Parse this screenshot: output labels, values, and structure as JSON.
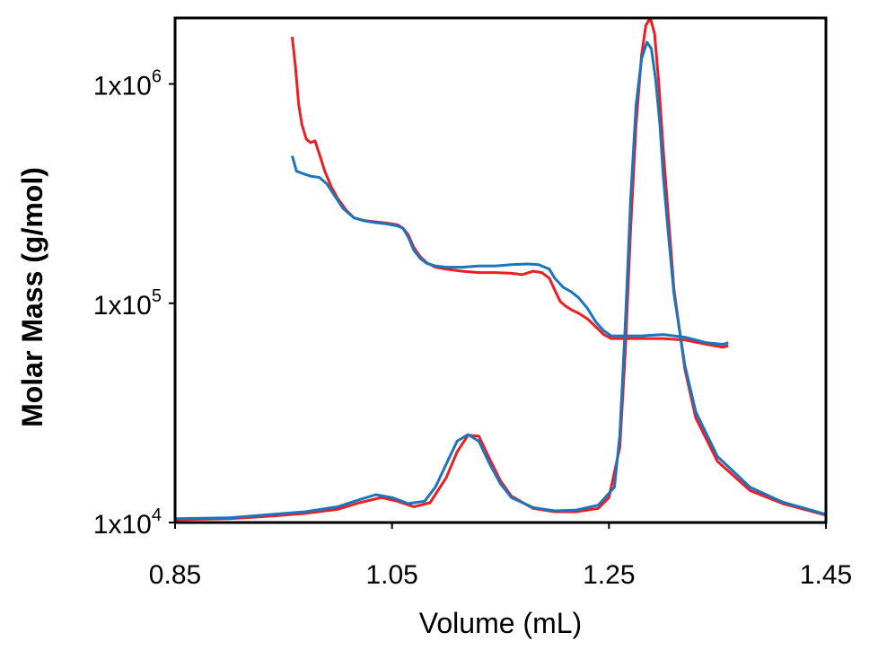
{
  "chart_data": {
    "type": "line",
    "title": "",
    "xlabel": "Volume (mL)",
    "ylabel": "Molar Mass (g/mol)",
    "xlim": [
      0.85,
      1.45
    ],
    "ylim": [
      10000,
      2000000
    ],
    "yscale": "log",
    "grid": false,
    "legend": "none",
    "x_ticks": [
      "0.85",
      "1.05",
      "1.25",
      "1.45"
    ],
    "x_tick_values": [
      0.85,
      1.05,
      1.25,
      1.45
    ],
    "y_ticks": [
      {
        "base": "1x10",
        "exp": "4",
        "value": 10000
      },
      {
        "base": "1x10",
        "exp": "5",
        "value": 100000
      },
      {
        "base": "1x10",
        "exp": "6",
        "value": 1000000
      }
    ],
    "series": [
      {
        "color": "#ee1c24",
        "kind": "molar-mass",
        "points": [
          [
            0.958,
            1640000
          ],
          [
            0.961,
            1200000
          ],
          [
            0.964,
            800000
          ],
          [
            0.967,
            650000
          ],
          [
            0.971,
            560000
          ],
          [
            0.975,
            540000
          ],
          [
            0.979,
            550000
          ],
          [
            0.983,
            480000
          ],
          [
            0.988,
            400000
          ],
          [
            0.994,
            340000
          ],
          [
            1.0,
            300000
          ],
          [
            1.008,
            265000
          ],
          [
            1.015,
            245000
          ],
          [
            1.025,
            238000
          ],
          [
            1.035,
            235000
          ],
          [
            1.045,
            232000
          ],
          [
            1.055,
            228000
          ],
          [
            1.06,
            220000
          ],
          [
            1.065,
            205000
          ],
          [
            1.07,
            180000
          ],
          [
            1.076,
            163000
          ],
          [
            1.082,
            153000
          ],
          [
            1.09,
            146000
          ],
          [
            1.1,
            143000
          ],
          [
            1.115,
            140000
          ],
          [
            1.13,
            138000
          ],
          [
            1.145,
            138000
          ],
          [
            1.16,
            137000
          ],
          [
            1.17,
            135000
          ],
          [
            1.18,
            140000
          ],
          [
            1.188,
            138000
          ],
          [
            1.195,
            130000
          ],
          [
            1.2,
            115000
          ],
          [
            1.205,
            102000
          ],
          [
            1.21,
            97000
          ],
          [
            1.216,
            93000
          ],
          [
            1.222,
            90000
          ],
          [
            1.23,
            85000
          ],
          [
            1.238,
            78000
          ],
          [
            1.245,
            72000
          ],
          [
            1.252,
            69000
          ],
          [
            1.265,
            69000
          ],
          [
            1.28,
            69000
          ],
          [
            1.3,
            69000
          ],
          [
            1.32,
            68000
          ],
          [
            1.34,
            65000
          ],
          [
            1.355,
            63000
          ],
          [
            1.36,
            64000
          ]
        ]
      },
      {
        "color": "#1b75bc",
        "kind": "molar-mass",
        "points": [
          [
            0.958,
            470000
          ],
          [
            0.962,
            400000
          ],
          [
            0.968,
            390000
          ],
          [
            0.975,
            380000
          ],
          [
            0.983,
            375000
          ],
          [
            0.99,
            350000
          ],
          [
            0.997,
            310000
          ],
          [
            1.005,
            270000
          ],
          [
            1.015,
            245000
          ],
          [
            1.025,
            237000
          ],
          [
            1.035,
            233000
          ],
          [
            1.045,
            230000
          ],
          [
            1.055,
            225000
          ],
          [
            1.06,
            220000
          ],
          [
            1.065,
            200000
          ],
          [
            1.07,
            175000
          ],
          [
            1.076,
            160000
          ],
          [
            1.082,
            152000
          ],
          [
            1.09,
            148000
          ],
          [
            1.1,
            146000
          ],
          [
            1.115,
            146000
          ],
          [
            1.13,
            148000
          ],
          [
            1.145,
            148000
          ],
          [
            1.16,
            150000
          ],
          [
            1.175,
            151000
          ],
          [
            1.185,
            150000
          ],
          [
            1.195,
            143000
          ],
          [
            1.2,
            130000
          ],
          [
            1.208,
            118000
          ],
          [
            1.215,
            113000
          ],
          [
            1.222,
            106000
          ],
          [
            1.23,
            95000
          ],
          [
            1.238,
            82000
          ],
          [
            1.245,
            75000
          ],
          [
            1.252,
            71000
          ],
          [
            1.265,
            71000
          ],
          [
            1.28,
            71000
          ],
          [
            1.3,
            72000
          ],
          [
            1.32,
            70000
          ],
          [
            1.34,
            66000
          ],
          [
            1.355,
            65000
          ],
          [
            1.36,
            66000
          ]
        ]
      },
      {
        "color": "#ee1c24",
        "kind": "chromatogram",
        "points": [
          [
            0.85,
            10300
          ],
          [
            0.9,
            10400
          ],
          [
            0.94,
            10700
          ],
          [
            0.97,
            11000
          ],
          [
            1.0,
            11500
          ],
          [
            1.02,
            12300
          ],
          [
            1.04,
            13000
          ],
          [
            1.055,
            12500
          ],
          [
            1.07,
            11800
          ],
          [
            1.085,
            12300
          ],
          [
            1.1,
            16000
          ],
          [
            1.11,
            21000
          ],
          [
            1.12,
            25000
          ],
          [
            1.13,
            24800
          ],
          [
            1.14,
            19500
          ],
          [
            1.15,
            15500
          ],
          [
            1.16,
            13200
          ],
          [
            1.18,
            11600
          ],
          [
            1.2,
            11200
          ],
          [
            1.22,
            11200
          ],
          [
            1.24,
            11600
          ],
          [
            1.25,
            13000
          ],
          [
            1.26,
            22000
          ],
          [
            1.265,
            60000
          ],
          [
            1.27,
            220000
          ],
          [
            1.275,
            650000
          ],
          [
            1.28,
            1350000
          ],
          [
            1.284,
            1850000
          ],
          [
            1.288,
            2000000
          ],
          [
            1.292,
            1700000
          ],
          [
            1.296,
            1000000
          ],
          [
            1.3,
            500000
          ],
          [
            1.305,
            240000
          ],
          [
            1.31,
            115000
          ],
          [
            1.32,
            50000
          ],
          [
            1.33,
            30000
          ],
          [
            1.35,
            19000
          ],
          [
            1.38,
            14000
          ],
          [
            1.41,
            12200
          ],
          [
            1.45,
            10800
          ]
        ]
      },
      {
        "color": "#1b75bc",
        "kind": "chromatogram",
        "points": [
          [
            0.85,
            10400
          ],
          [
            0.9,
            10500
          ],
          [
            0.94,
            10900
          ],
          [
            0.97,
            11200
          ],
          [
            1.0,
            11800
          ],
          [
            1.02,
            12700
          ],
          [
            1.035,
            13400
          ],
          [
            1.05,
            13000
          ],
          [
            1.065,
            12200
          ],
          [
            1.08,
            12500
          ],
          [
            1.09,
            14500
          ],
          [
            1.1,
            18500
          ],
          [
            1.11,
            23500
          ],
          [
            1.12,
            25200
          ],
          [
            1.13,
            23500
          ],
          [
            1.14,
            18500
          ],
          [
            1.15,
            15000
          ],
          [
            1.16,
            13000
          ],
          [
            1.18,
            11700
          ],
          [
            1.2,
            11300
          ],
          [
            1.22,
            11400
          ],
          [
            1.24,
            12000
          ],
          [
            1.255,
            14500
          ],
          [
            1.26,
            25000
          ],
          [
            1.265,
            80000
          ],
          [
            1.27,
            300000
          ],
          [
            1.275,
            800000
          ],
          [
            1.28,
            1300000
          ],
          [
            1.285,
            1550000
          ],
          [
            1.289,
            1450000
          ],
          [
            1.293,
            1050000
          ],
          [
            1.297,
            650000
          ],
          [
            1.3,
            380000
          ],
          [
            1.305,
            200000
          ],
          [
            1.31,
            110000
          ],
          [
            1.32,
            52000
          ],
          [
            1.33,
            32000
          ],
          [
            1.35,
            20000
          ],
          [
            1.38,
            14500
          ],
          [
            1.41,
            12400
          ],
          [
            1.45,
            10900
          ]
        ]
      }
    ]
  }
}
